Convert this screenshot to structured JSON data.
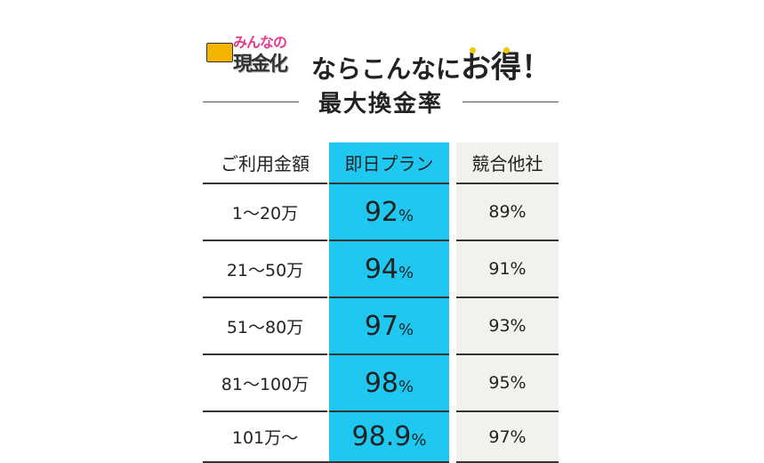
{
  "header": {
    "logo_top": "みんなの",
    "logo_bottom": "現金化",
    "tagline": "ならこんなに",
    "tagline_emph": "お得！",
    "subtitle": "最大換金率"
  },
  "table": {
    "headers": [
      "ご利用金額",
      "即日プラン",
      "競合他社"
    ],
    "rows": [
      {
        "range": "1〜20万",
        "plan": "92",
        "plan_unit": "%",
        "rival": "89%"
      },
      {
        "range": "21〜50万",
        "plan": "94",
        "plan_unit": "%",
        "rival": "91%"
      },
      {
        "range": "51〜80万",
        "plan": "97",
        "plan_unit": "%",
        "rival": "93%"
      },
      {
        "range": "81〜100万",
        "plan": "98",
        "plan_unit": "%",
        "rival": "95%"
      },
      {
        "range": "101万〜",
        "plan": "98.9",
        "plan_unit": "%",
        "rival": "97%"
      }
    ]
  },
  "colors": {
    "accent": "#1ec8f0",
    "rival_bg": "#f2f1ee",
    "dots": "#f7c600"
  }
}
